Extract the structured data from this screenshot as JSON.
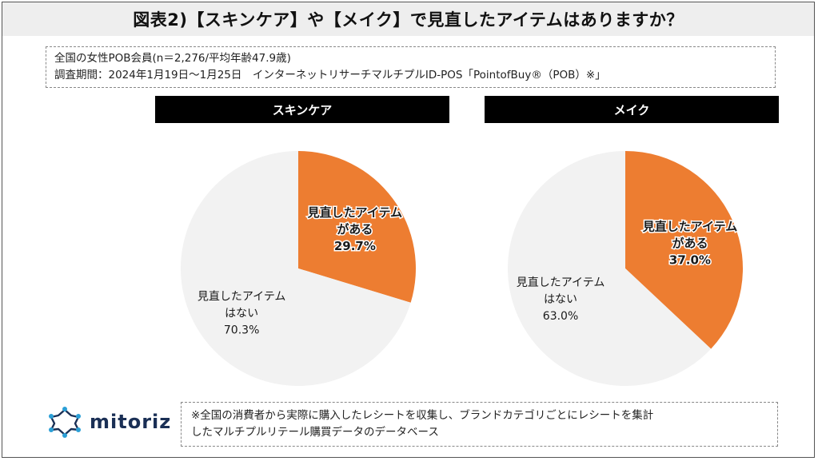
{
  "title": "図表2)【スキンケア】や【メイク】で見直したアイテムはありますか？",
  "info": {
    "line1": "全国の女性POB会員(n＝2,276/平均年齢47.9歳)",
    "line2": "調査期間：2024年1月19日～1月25日　インターネットリサーチマルチプルID-POS「PointofBuy®（POB）※」"
  },
  "colors": {
    "accent": "#ED7D31",
    "neutral": "#F2F2F2",
    "header_bg": "#000000"
  },
  "chart_data": [
    {
      "type": "pie",
      "title": "スキンケア",
      "slices": [
        {
          "label_line1": "見直したアイテム",
          "label_line2": "がある",
          "value": 29.7,
          "value_text": "29.7%",
          "color": "#ED7D31"
        },
        {
          "label_line1": "見直したアイテム",
          "label_line2": "はない",
          "value": 70.3,
          "value_text": "70.3%",
          "color": "#F2F2F2"
        }
      ]
    },
    {
      "type": "pie",
      "title": "メイク",
      "slices": [
        {
          "label_line1": "見直したアイテム",
          "label_line2": "がある",
          "value": 37.0,
          "value_text": "37.0%",
          "color": "#ED7D31"
        },
        {
          "label_line1": "見直したアイテム",
          "label_line2": "はない",
          "value": 63.0,
          "value_text": "63.0%",
          "color": "#F2F2F2"
        }
      ]
    }
  ],
  "logo": {
    "text": "mitoriz",
    "icon": "mitoriz-logo-icon"
  },
  "note": {
    "line1": "※全国の消費者から実際に購入したレシートを収集し、ブランドカテゴリごとにレシートを集計",
    "line2": "したマルチプルリテール購買データのデータベース"
  }
}
